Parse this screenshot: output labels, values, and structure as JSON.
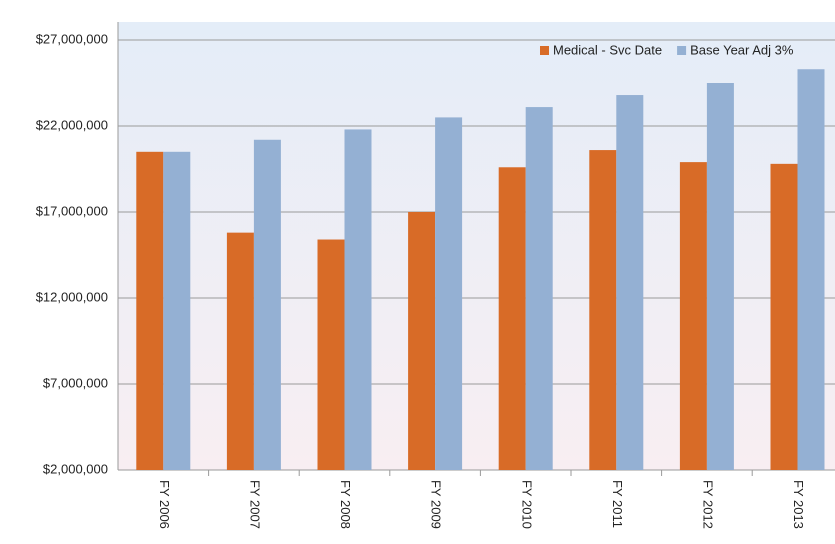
{
  "chart_data": {
    "type": "bar",
    "categories": [
      "FY 2006",
      "FY 2007",
      "FY 2008",
      "FY 2009",
      "FY 2010",
      "FY 2011",
      "FY 2012",
      "FY 2013"
    ],
    "series": [
      {
        "name": "Medical - Svc Date",
        "color": "#d86b27",
        "values": [
          20500000,
          15800000,
          15400000,
          17000000,
          19600000,
          20600000,
          19900000,
          19800000
        ]
      },
      {
        "name": "Base Year Adj 3%",
        "color": "#94b0d3",
        "values": [
          20500000,
          21200000,
          21800000,
          22500000,
          23100000,
          23800000,
          24500000,
          25300000
        ]
      }
    ],
    "ylim": [
      2000000,
      27000000
    ],
    "yticks": [
      {
        "value": 2000000,
        "label": "$2,000,000"
      },
      {
        "value": 7000000,
        "label": "$7,000,000"
      },
      {
        "value": 12000000,
        "label": "$12,000,000"
      },
      {
        "value": 17000000,
        "label": "$17,000,000"
      },
      {
        "value": 22000000,
        "label": "$22,000,000"
      },
      {
        "value": 27000000,
        "label": "$27,000,000"
      }
    ],
    "grid": true,
    "legend": "top-right"
  }
}
